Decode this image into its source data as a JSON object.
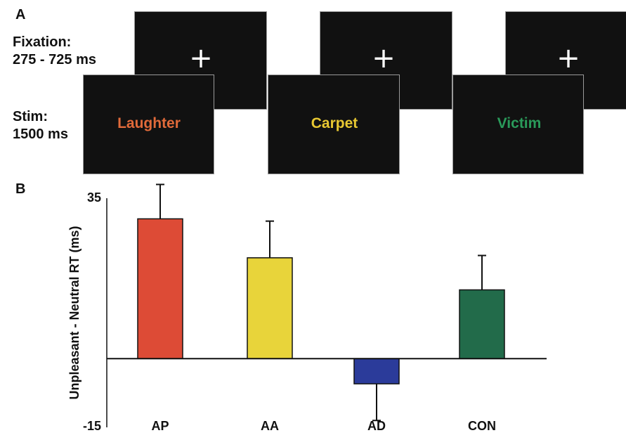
{
  "panel_a": {
    "letter": "A",
    "fixation_label": [
      "Fixation:",
      "275 - 725 ms"
    ],
    "stim_label": [
      "Stim:",
      "1500 ms"
    ],
    "fixation_symbol": "+",
    "words": [
      {
        "text": "Laughter",
        "color": "#e06a3a"
      },
      {
        "text": "Carpet",
        "color": "#e8c832"
      },
      {
        "text": "Victim",
        "color": "#2a9a5a"
      }
    ]
  },
  "panel_b": {
    "letter": "B"
  },
  "chart_data": {
    "type": "bar",
    "categories": [
      "AP",
      "AA",
      "AD",
      "CON"
    ],
    "values": [
      30.5,
      22,
      -5.5,
      15
    ],
    "errors": [
      7.5,
      8,
      8,
      7.5
    ],
    "colors": [
      "#dd4b36",
      "#e8d43a",
      "#2b3b9a",
      "#226b4a"
    ],
    "ylabel": "Unpleasant - Neutral RT (ms)",
    "ylim": [
      -15,
      35
    ],
    "ytick_labels": [
      "35",
      "-15"
    ],
    "grid": false
  }
}
